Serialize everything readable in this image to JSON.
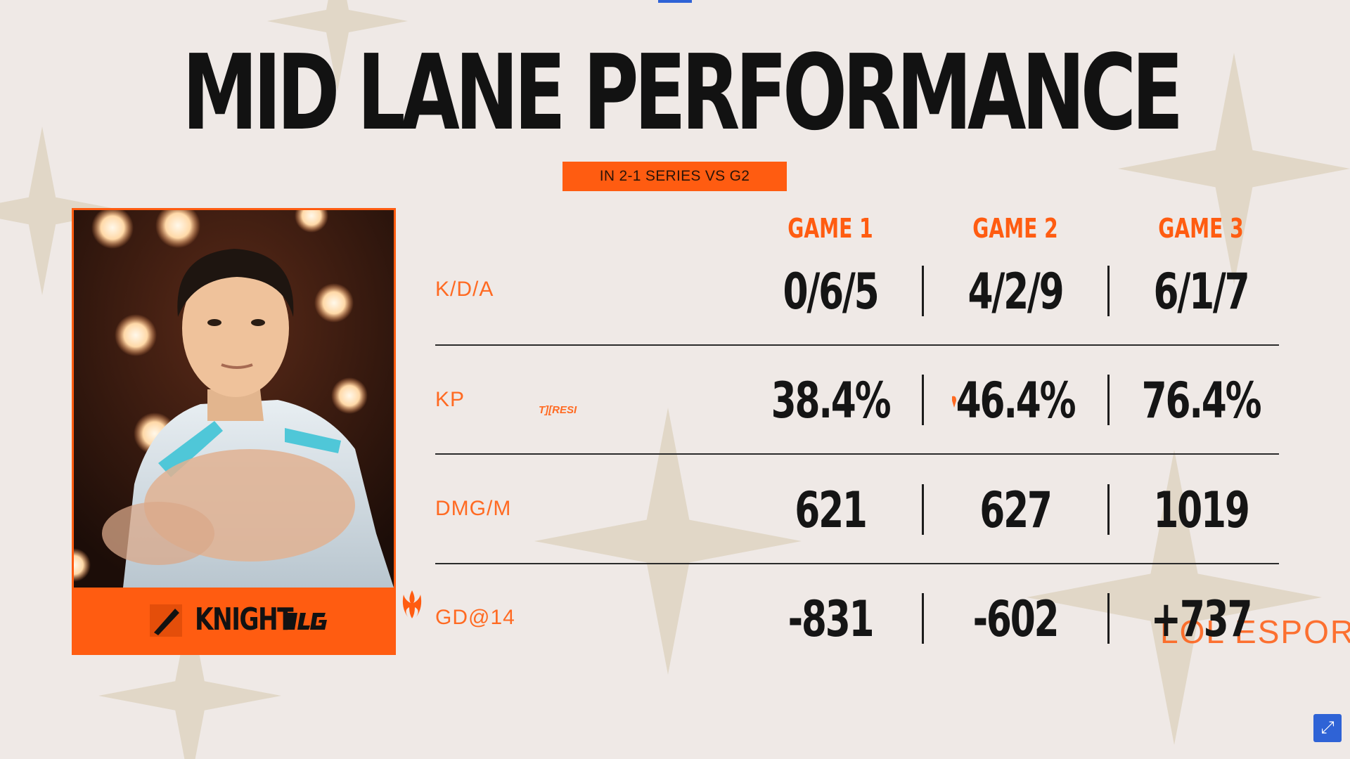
{
  "title": "MID LANE PERFORMANCE",
  "subtitle": "IN 2-1 SERIES VS G2",
  "player": {
    "name": "KNIGHT",
    "role_icon": "mid-lane-icon",
    "team_logo": "blg-logo"
  },
  "games": [
    "GAME 1",
    "GAME 2",
    "GAME 3"
  ],
  "rows": [
    {
      "label": "K/D/A",
      "values": [
        "0/6/5",
        "4/2/9",
        "6/1/7"
      ]
    },
    {
      "label": "KP",
      "values": [
        "38.4%",
        "46.4%",
        "76.4%"
      ]
    },
    {
      "label": "DMG/M",
      "values": [
        "621",
        "627",
        "1019"
      ]
    },
    {
      "label": "GD@14",
      "values": [
        "-831",
        "-602",
        "+737"
      ]
    }
  ],
  "overlay_text": "T][RESI",
  "watermark": "LOL ESPORT",
  "colors": {
    "accent": "#ff5c11",
    "background": "#efe9e6",
    "text": "#151515"
  },
  "expand_icon": "expand-icon"
}
